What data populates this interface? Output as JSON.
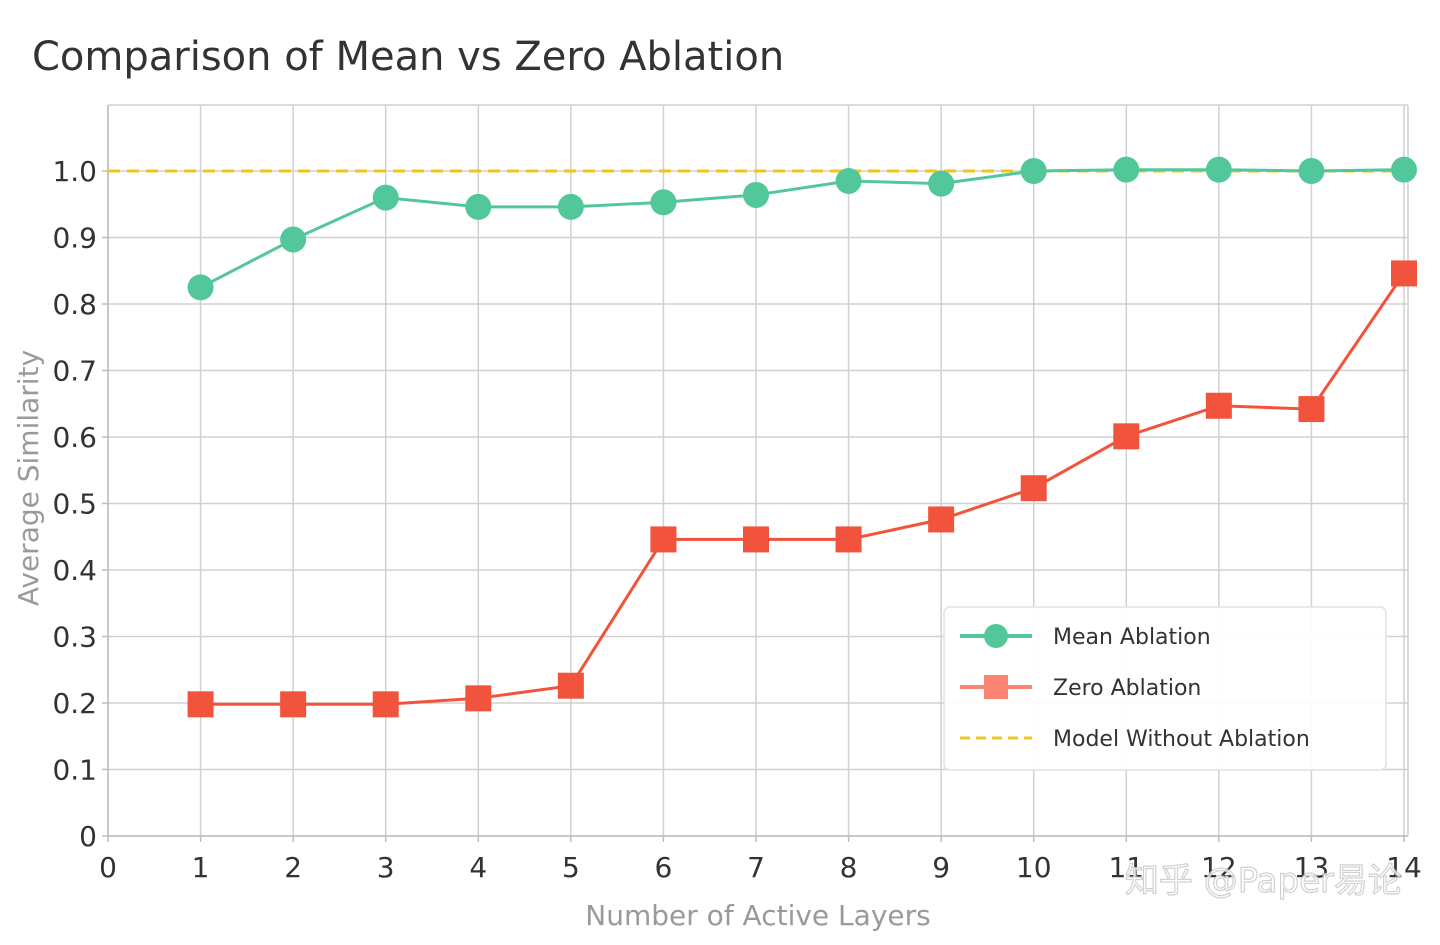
{
  "chart_data": {
    "type": "line",
    "title": "Comparison of Mean vs Zero Ablation",
    "xlabel": "Number of Active Layers",
    "ylabel": "Average Similarity",
    "xlim": [
      0,
      14
    ],
    "ylim": [
      0,
      1.1
    ],
    "grid": true,
    "x_ticks": [
      "0",
      "1",
      "2",
      "3",
      "4",
      "5",
      "6",
      "7",
      "8",
      "9",
      "10",
      "11",
      "12",
      "13",
      "14"
    ],
    "y_ticks": [
      "0",
      "0.1",
      "0.2",
      "0.3",
      "0.4",
      "0.5",
      "0.6",
      "0.7",
      "0.8",
      "0.9",
      "1.0"
    ],
    "x": [
      1,
      2,
      3,
      4,
      5,
      6,
      7,
      8,
      9,
      10,
      11,
      12,
      13,
      14
    ],
    "series": [
      {
        "name": "Mean Ablation",
        "color": "#52c79a",
        "marker": "circle",
        "values": [
          0.825,
          0.897,
          0.96,
          0.946,
          0.946,
          0.953,
          0.964,
          0.985,
          0.981,
          1.0,
          1.002,
          1.002,
          1.0,
          1.002
        ]
      },
      {
        "name": "Zero Ablation",
        "color": "#f2533c",
        "legend_marker_color": "#f98472",
        "marker": "square",
        "values": [
          0.198,
          0.198,
          0.198,
          0.207,
          0.226,
          0.446,
          0.446,
          0.446,
          0.476,
          0.523,
          0.601,
          0.647,
          0.642,
          0.846
        ]
      }
    ],
    "reference_line": {
      "name": "Model Without Ablation",
      "y": 1.0,
      "color": "#f0c419",
      "style": "dashed"
    },
    "legend_position": "bottom-right"
  },
  "watermark": "知乎 @Paper易论"
}
